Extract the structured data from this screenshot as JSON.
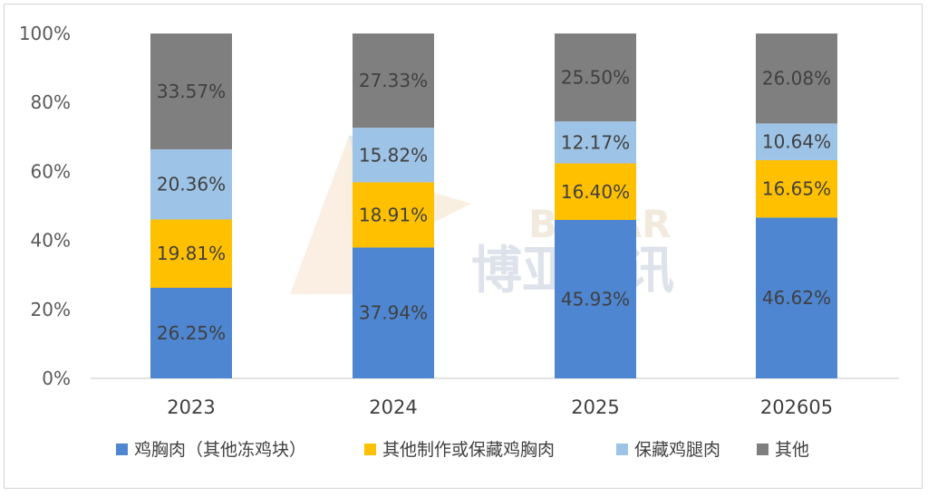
{
  "chart_data": {
    "type": "bar",
    "stacked": true,
    "categories": [
      "2023",
      "2024",
      "2025",
      "202605"
    ],
    "series": [
      {
        "name": "鸡胸肉（其他冻鸡块）",
        "color": "#4e86d1",
        "values": [
          26.25,
          37.94,
          45.93,
          46.62
        ],
        "labels": [
          "26.25%",
          "37.94%",
          "45.93%",
          "46.62%"
        ]
      },
      {
        "name": "其他制作或保藏鸡胸肉",
        "color": "#ffc000",
        "values": [
          19.81,
          18.91,
          16.4,
          16.65
        ],
        "labels": [
          "19.81%",
          "18.91%",
          "16.40%",
          "16.65%"
        ]
      },
      {
        "name": "保藏鸡腿肉",
        "color": "#9dc3e6",
        "values": [
          20.36,
          15.82,
          12.17,
          10.64
        ],
        "labels": [
          "20.36%",
          "15.82%",
          "12.17%",
          "10.64%"
        ]
      },
      {
        "name": "其他",
        "color": "#7f7f7f",
        "values": [
          33.57,
          27.33,
          25.5,
          26.08
        ],
        "labels": [
          "33.57%",
          "27.33%",
          "25.50%",
          "26.08%"
        ]
      }
    ],
    "ylim": [
      0,
      100
    ],
    "y_ticks": [
      "0%",
      "20%",
      "40%",
      "60%",
      "80%",
      "100%"
    ],
    "y_tick_values": [
      0,
      20,
      40,
      60,
      80,
      100
    ],
    "grid": false,
    "legend_position": "bottom"
  },
  "watermark": {
    "latin": "BOYAR",
    "chinese": "博亚和讯"
  }
}
